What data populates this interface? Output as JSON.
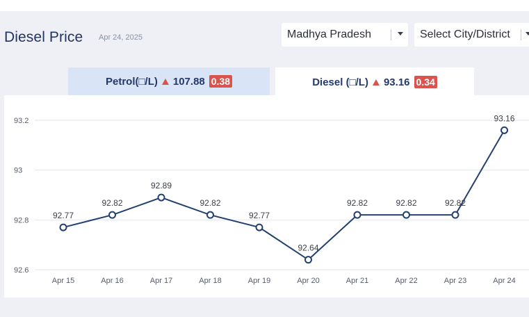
{
  "header": {
    "title": "Diesel Price",
    "date": "Apr 24, 2025"
  },
  "filters": {
    "state": "Madhya Pradesh",
    "city_placeholder": "Select City/District"
  },
  "tabs": [
    {
      "name": "Petrol(□/L)",
      "price": "107.88",
      "change": "0.38",
      "direction": "up",
      "active": false
    },
    {
      "name": "Diesel (□/L)",
      "price": "93.16",
      "change": "0.34",
      "direction": "up",
      "active": true
    }
  ],
  "colors": {
    "line": "#23406f",
    "up_badge": "#d9534f",
    "title": "#23345f",
    "inactive_tab": "#d9e4f7"
  },
  "chart_data": {
    "type": "line",
    "categories": [
      "Apr 15",
      "Apr 16",
      "Apr 17",
      "Apr 18",
      "Apr 19",
      "Apr 20",
      "Apr 21",
      "Apr 22",
      "Apr 23",
      "Apr 24"
    ],
    "values": [
      92.77,
      92.82,
      92.89,
      92.82,
      92.77,
      92.64,
      92.82,
      92.82,
      92.82,
      93.16
    ],
    "data_labels": [
      "92.77",
      "92.82",
      "92.89",
      "92.82",
      "92.77",
      "92.64",
      "92.82",
      "92.82",
      "92.82",
      "93.16"
    ],
    "yticks": [
      "92.6",
      "92.8",
      "93",
      "93.2"
    ],
    "ytick_values": [
      92.6,
      92.8,
      93.0,
      93.2
    ],
    "ylim": [
      92.6,
      93.2
    ],
    "grid": true,
    "legend": "none"
  }
}
